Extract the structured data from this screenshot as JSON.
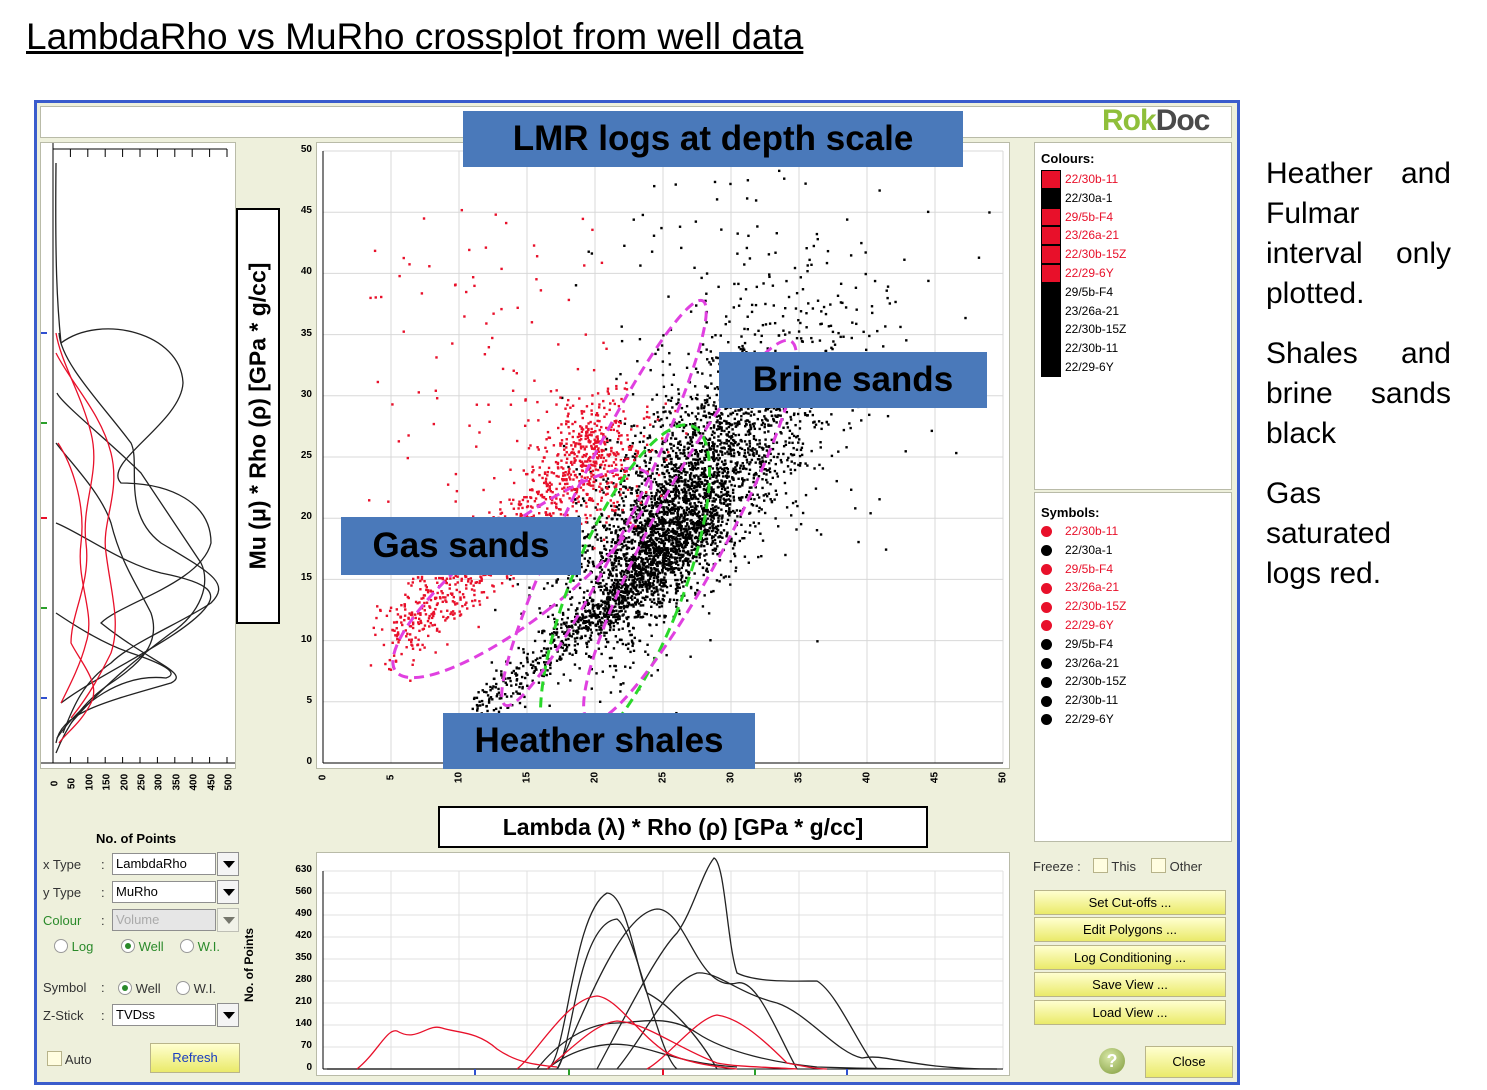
{
  "slide": {
    "title": "LambdaRho vs MuRho crossplot from well data",
    "notes": [
      "Heather and Fulmar interval only plotted.",
      "Shales and brine sands black",
      "Gas saturated logs red."
    ]
  },
  "app": {
    "logo_a": "Rok",
    "logo_b": "Doc"
  },
  "callouts": {
    "lmr": "LMR logs at depth scale",
    "brine": "Brine sands",
    "gas": "Gas sands",
    "heather": "Heather shales",
    "y_axis": "Mu (μ) * Rho (ρ) [GPa * g/cc]",
    "x_axis": "Lambda (λ) * Rho (ρ) [GPa * g/cc]"
  },
  "main_plot": {
    "x_ticks": [
      "0",
      "5",
      "10",
      "15",
      "20",
      "25",
      "30",
      "35",
      "40",
      "45",
      "50"
    ],
    "y_ticks": [
      "0",
      "5",
      "10",
      "15",
      "20",
      "25",
      "30",
      "35",
      "40",
      "45",
      "50"
    ],
    "xlim": [
      0,
      50
    ],
    "ylim": [
      0,
      50
    ]
  },
  "left_plot": {
    "x_ticks": [
      "0",
      "50",
      "100",
      "150",
      "200",
      "250",
      "300",
      "350",
      "400",
      "450",
      "500"
    ]
  },
  "histogram": {
    "y_label": "No. of Points",
    "y_ticks": [
      "0",
      "70",
      "140",
      "210",
      "280",
      "350",
      "420",
      "490",
      "560",
      "630"
    ]
  },
  "legend": {
    "colours_header": "Colours:",
    "symbols_header": "Symbols:",
    "items": [
      {
        "name": "22/30b-11",
        "color": "#e8102a"
      },
      {
        "name": "22/30a-1",
        "color": "#000000"
      },
      {
        "name": "29/5b-F4",
        "color": "#e8102a"
      },
      {
        "name": "23/26a-21",
        "color": "#e8102a"
      },
      {
        "name": "22/30b-15Z",
        "color": "#e8102a"
      },
      {
        "name": "22/29-6Y",
        "color": "#e8102a"
      },
      {
        "name": "29/5b-F4",
        "color": "#000000"
      },
      {
        "name": "23/26a-21",
        "color": "#000000"
      },
      {
        "name": "22/30b-15Z",
        "color": "#000000"
      },
      {
        "name": "22/30b-11",
        "color": "#000000"
      },
      {
        "name": "22/29-6Y",
        "color": "#000000"
      }
    ]
  },
  "controls": {
    "no_of_points": "No. of Points",
    "x_type_label": "x Type",
    "x_type_value": "LambdaRho",
    "y_type_label": "y Type",
    "y_type_value": "MuRho",
    "colour_label": "Colour",
    "colour_value": "Volume",
    "radio_log": "Log",
    "radio_well": "Well",
    "radio_wi": "W.I.",
    "symbol_label": "Symbol",
    "symbol_well": "Well",
    "symbol_wi": "W.I.",
    "zstick_label": "Z-Stick",
    "zstick_value": "TVDss",
    "auto": "Auto",
    "refresh": "Refresh",
    "colon": ":"
  },
  "right_controls": {
    "freeze": "Freeze :",
    "this": "This",
    "other": "Other",
    "buttons": [
      "Set Cut-offs ...",
      "Edit Polygons ...",
      "Log Conditioning ...",
      "Save View ...",
      "Load View ..."
    ],
    "help": "?",
    "close": "Close"
  }
}
